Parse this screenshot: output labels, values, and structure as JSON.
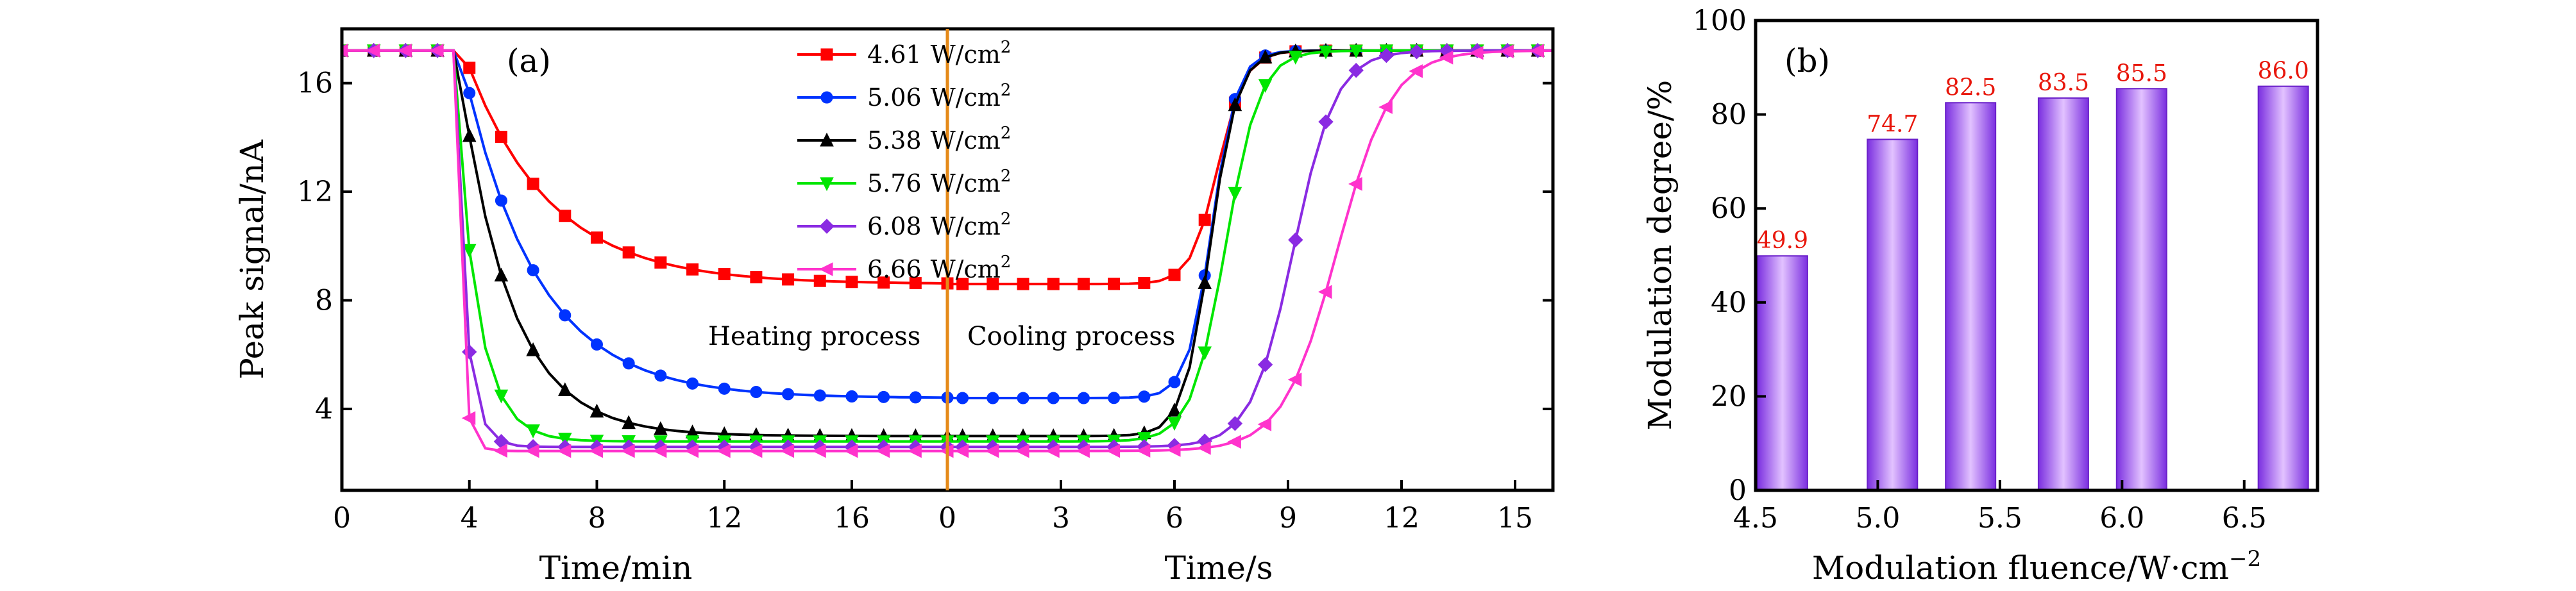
{
  "chart_data": [
    {
      "panel": "(a)",
      "type": "line",
      "ylabel": "Peak signal/nA",
      "ylim": [
        1,
        18
      ],
      "yticks": [
        "4",
        "8",
        "12",
        "16"
      ],
      "heating": {
        "xlabel": "Time/min",
        "xlim": [
          0,
          19
        ],
        "xticks": [
          "0",
          "4",
          "8",
          "12",
          "16"
        ],
        "annotation": "Heating process"
      },
      "cooling": {
        "xlabel": "Time/s",
        "xlim": [
          0,
          16
        ],
        "xticks": [
          "0",
          "3",
          "6",
          "9",
          "12",
          "15"
        ],
        "annotation": "Cooling process"
      },
      "legend_unit": "W/cm",
      "legend_sup": "2",
      "series": [
        {
          "name": "4.61",
          "color": "#ff0000",
          "marker": "square",
          "start": 17.2,
          "min": 8.6,
          "tau_heat": 2.6,
          "delay_heat": 3.8,
          "c_center": 7.15,
          "c_width": 0.12
        },
        {
          "name": "5.06",
          "color": "#0033ff",
          "marker": "circle",
          "start": 17.2,
          "min": 4.4,
          "tau_heat": 2.3,
          "delay_heat": 3.7,
          "c_center": 7.0,
          "c_width": 0.11
        },
        {
          "name": "5.38",
          "color": "#000000",
          "marker": "triangle-up",
          "start": 17.2,
          "min": 3.0,
          "tau_heat": 1.6,
          "delay_heat": 3.6,
          "c_center": 6.95,
          "c_width": 0.12
        },
        {
          "name": "5.76",
          "color": "#00e600",
          "marker": "triangle-down",
          "start": 17.2,
          "min": 2.8,
          "tau_heat": 0.7,
          "delay_heat": 3.5,
          "c_center": 7.35,
          "c_width": 0.15
        },
        {
          "name": "6.08",
          "color": "#8a2be2",
          "marker": "diamond",
          "start": 17.2,
          "min": 2.6,
          "tau_heat": 0.35,
          "delay_heat": 3.5,
          "c_center": 9.15,
          "c_width": 0.35
        },
        {
          "name": "6.66",
          "color": "#ff33cc",
          "marker": "triangle-left",
          "start": 17.2,
          "min": 2.45,
          "tau_heat": 0.2,
          "delay_heat": 3.5,
          "c_center": 10.3,
          "c_width": 0.45
        }
      ]
    },
    {
      "panel": "(b)",
      "type": "bar",
      "xlabel": "Modulation fluence/W·cm",
      "xlabel_sup": "−2",
      "ylabel": "Modulation degree/%",
      "xlim": [
        4.5,
        6.8
      ],
      "ylim": [
        0,
        100
      ],
      "xticks": [
        "4.5",
        "5.0",
        "5.5",
        "6.0",
        "6.5"
      ],
      "yticks": [
        "0",
        "20",
        "40",
        "60",
        "80",
        "100"
      ],
      "x": [
        4.61,
        5.06,
        5.38,
        5.76,
        6.08,
        6.66
      ],
      "values": [
        49.9,
        74.7,
        82.5,
        83.5,
        85.5,
        86.0
      ],
      "labels": [
        "49.9",
        "74.7",
        "82.5",
        "83.5",
        "85.5",
        "86.0"
      ],
      "bar_color": "#9b4dff",
      "label_color": "#e8160b"
    }
  ]
}
